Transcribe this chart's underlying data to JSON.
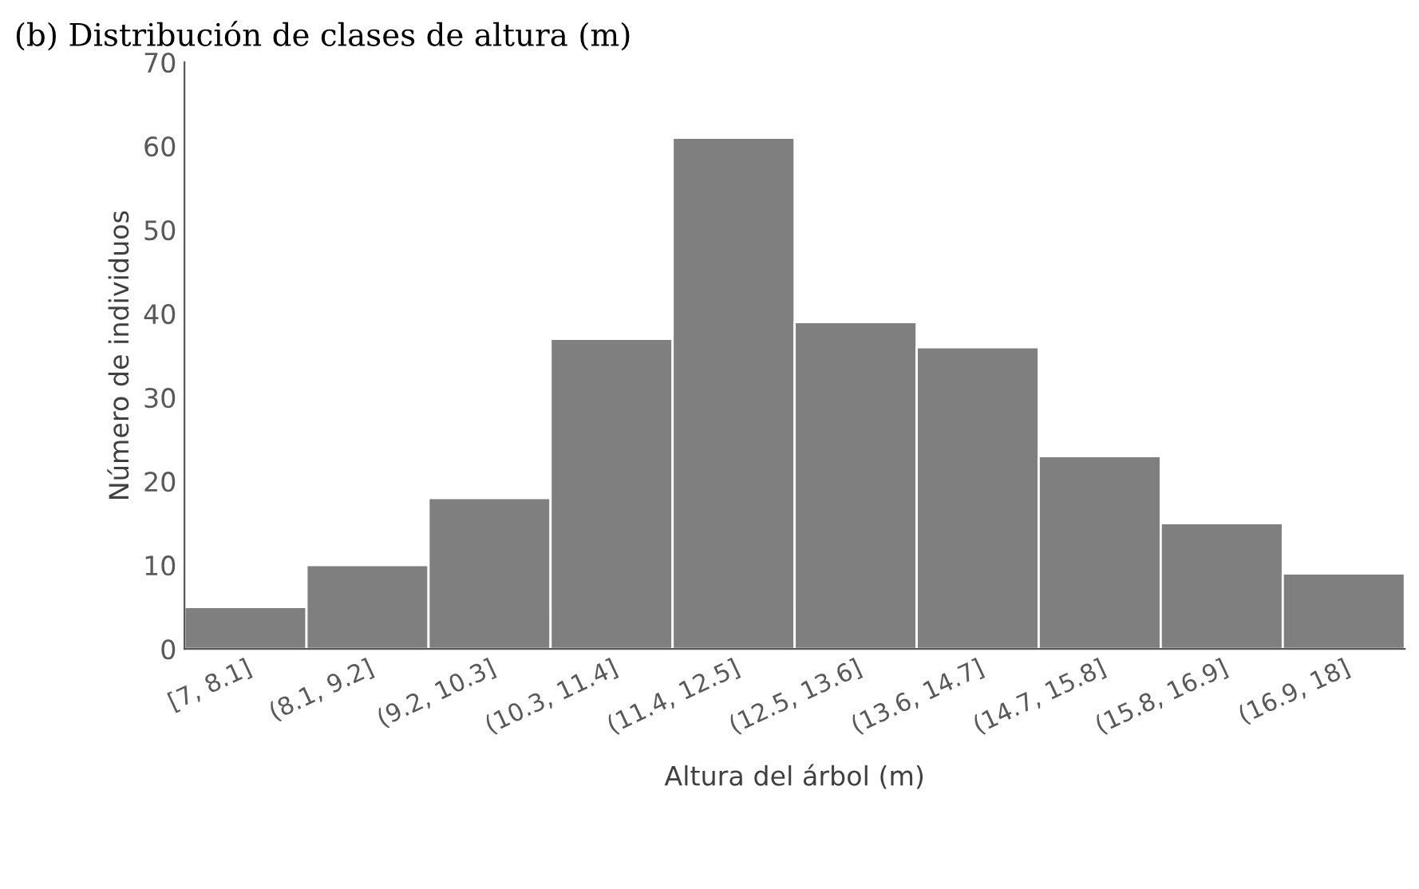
{
  "chart_data": {
    "type": "bar",
    "title": "(b) Distribución de clases de altura (m)",
    "xlabel": "Altura del árbol (m)",
    "ylabel": "Número de individuos",
    "categories": [
      "[7, 8.1]",
      "(8.1, 9.2]",
      "(9.2, 10.3]",
      "(10.3, 11.4]",
      "(11.4, 12.5]",
      "(12.5, 13.6]",
      "(13.6, 14.7]",
      "(14.7, 15.8]",
      "(15.8, 16.9]",
      "(16.9, 18]"
    ],
    "values": [
      5,
      10,
      18,
      37,
      61,
      39,
      36,
      23,
      15,
      9
    ],
    "color": "#7f7f7f",
    "ylim": [
      0,
      70
    ],
    "yticks": [
      0,
      10,
      20,
      30,
      40,
      50,
      60,
      70
    ],
    "grid": false,
    "legend": false
  }
}
